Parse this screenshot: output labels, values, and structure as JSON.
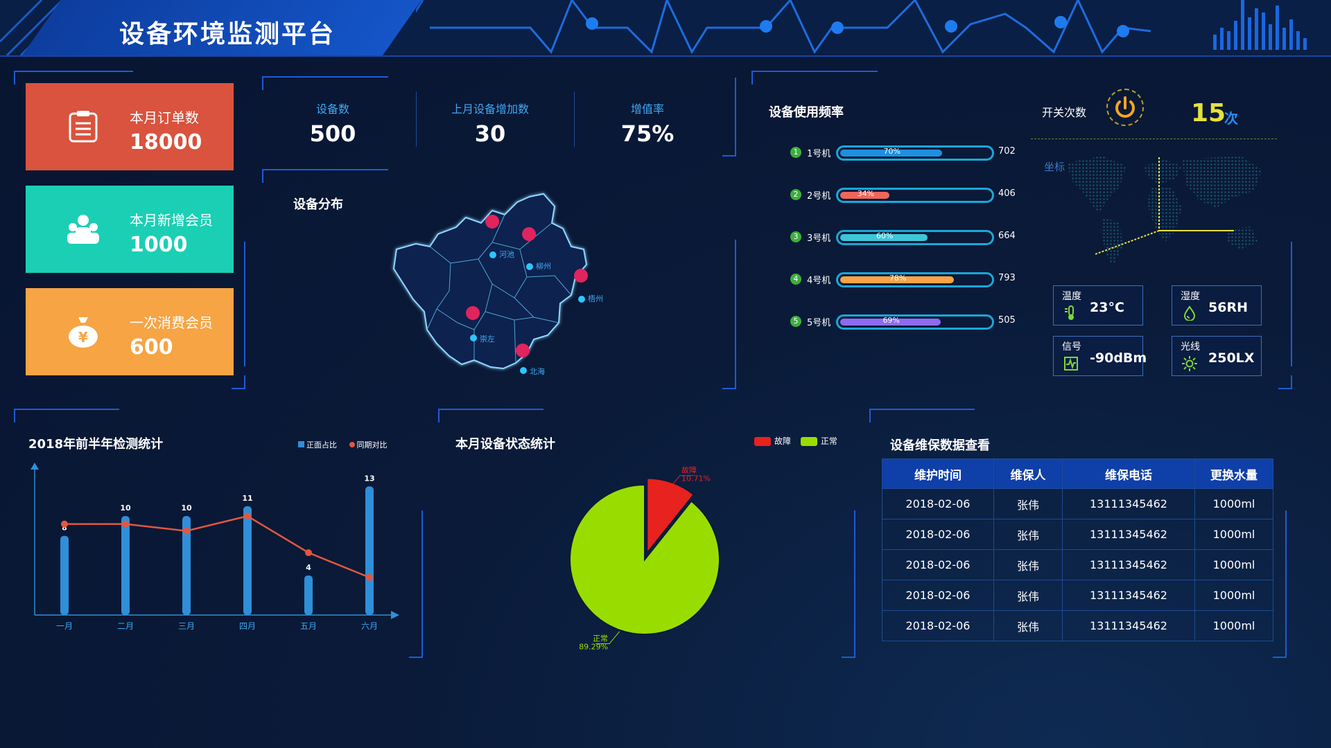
{
  "header": {
    "title": "设备环境监测平台"
  },
  "cards": [
    {
      "label": "本月订单数",
      "value": "18000",
      "color": "#d9533e",
      "icon": "clipboard-icon"
    },
    {
      "label": "本月新增会员",
      "value": "1000",
      "color": "#1bcfb4",
      "icon": "group-icon"
    },
    {
      "label": "一次消费会员",
      "value": "600",
      "color": "#f6a444",
      "icon": "money-bag-icon"
    }
  ],
  "stats": [
    {
      "label": "设备数",
      "value": "500"
    },
    {
      "label": "上月设备增加数",
      "value": "30"
    },
    {
      "label": "增值率",
      "value": "75%"
    }
  ],
  "distribution": {
    "title": "设备分布",
    "cities": [
      "河池",
      "柳州",
      "梧州",
      "崇左",
      "北海"
    ]
  },
  "usage": {
    "title": "设备使用频率",
    "items": [
      {
        "num": "1",
        "name": "1号机",
        "pct": 0.7,
        "pct_label": "70%",
        "value": "702",
        "color": "#1e8fe0"
      },
      {
        "num": "2",
        "name": "2号机",
        "pct": 0.34,
        "pct_label": "34%",
        "value": "406",
        "color": "#f0665a"
      },
      {
        "num": "3",
        "name": "3号机",
        "pct": 0.6,
        "pct_label": "60%",
        "value": "664",
        "color": "#3ec6d8"
      },
      {
        "num": "4",
        "name": "4号机",
        "pct": 0.78,
        "pct_label": "78%",
        "value": "793",
        "color": "#f6a444"
      },
      {
        "num": "5",
        "name": "5号机",
        "pct": 0.69,
        "pct_label": "69%",
        "value": "505",
        "color": "#8e6bf0"
      }
    ]
  },
  "switch": {
    "label": "开关次数",
    "value": "15",
    "unit": "次"
  },
  "coords": {
    "label": "坐标"
  },
  "env": [
    {
      "title": "温度",
      "value": "23°C",
      "icon": "thermometer-icon"
    },
    {
      "title": "湿度",
      "value": "56RH",
      "icon": "droplet-icon"
    },
    {
      "title": "信号",
      "value": "-90dBm",
      "icon": "signal-icon"
    },
    {
      "title": "光线",
      "value": "250LX",
      "icon": "sun-icon"
    }
  ],
  "bar_chart_title": "2018年前半年检测统计",
  "pie_chart_title": "本月设备状态统计",
  "chart_data": [
    {
      "type": "bar",
      "title": "2018年前半年检测统计",
      "categories": [
        "一月",
        "二月",
        "三月",
        "四月",
        "五月",
        "六月"
      ],
      "series": [
        {
          "name": "正面占比",
          "type": "bar",
          "values": [
            8,
            10,
            10,
            11,
            4,
            13
          ],
          "color": "#2f8fd8"
        },
        {
          "name": "同期对比",
          "type": "line",
          "values": [
            9.2,
            9.2,
            8.5,
            10,
            6.3,
            3.8
          ],
          "color": "#e2573f"
        }
      ],
      "ylim": [
        0,
        14
      ],
      "legend": "top-right"
    },
    {
      "type": "pie",
      "title": "本月设备状态统计",
      "slices": [
        {
          "name": "故障",
          "value": 10.71,
          "label": "10.71%",
          "color": "#e8221f"
        },
        {
          "name": "正常",
          "value": 89.29,
          "label": "89.29%",
          "color": "#99dd00"
        }
      ],
      "legend": "top-right"
    }
  ],
  "maintenance": {
    "title": "设备维保数据查看",
    "columns": [
      "维护时间",
      "维保人",
      "维保电话",
      "更换水量"
    ],
    "rows": [
      [
        "2018-02-06",
        "张伟",
        "13111345462",
        "1000ml"
      ],
      [
        "2018-02-06",
        "张伟",
        "13111345462",
        "1000ml"
      ],
      [
        "2018-02-06",
        "张伟",
        "13111345462",
        "1000ml"
      ],
      [
        "2018-02-06",
        "张伟",
        "13111345462",
        "1000ml"
      ],
      [
        "2018-02-06",
        "张伟",
        "13111345462",
        "1000ml"
      ]
    ]
  }
}
